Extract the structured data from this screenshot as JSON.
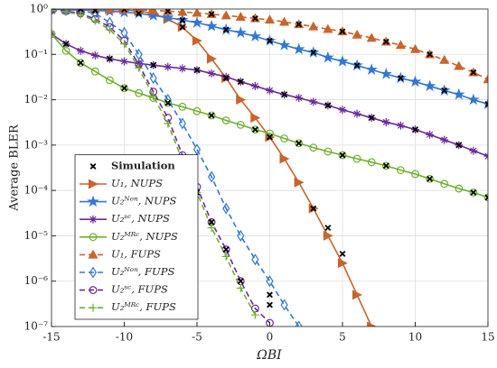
{
  "chart_data": {
    "type": "line",
    "x_label": "ΩBI",
    "y_label": "Average BLER",
    "log_y": true,
    "grid": true,
    "legend_position": "lower left",
    "xlim": [
      -15,
      15
    ],
    "xticks": [
      -15,
      -10,
      -5,
      0,
      5,
      10,
      15
    ],
    "ylim": [
      1e-07,
      1
    ],
    "yticks": [
      {
        "value": 1,
        "label": "10⁰"
      },
      {
        "value": 0.1,
        "label": "10⁻¹"
      },
      {
        "value": 0.01,
        "label": "10⁻²"
      },
      {
        "value": 0.001,
        "label": "10⁻³"
      },
      {
        "value": 0.0001,
        "label": "10⁻⁴"
      },
      {
        "value": 1e-05,
        "label": "10⁻⁵"
      },
      {
        "value": 1e-06,
        "label": "10⁻⁶"
      },
      {
        "value": 1e-07,
        "label": "10⁻⁷"
      }
    ],
    "x": [
      -15,
      -14,
      -13,
      -12,
      -11,
      -10,
      -9,
      -8,
      -7,
      -6,
      -5,
      -4,
      -3,
      -2,
      -1,
      0,
      1,
      2,
      3,
      4,
      5,
      6,
      7,
      8,
      9,
      10,
      11,
      12,
      13,
      14,
      15
    ],
    "simulation": {
      "name": "Simulation",
      "color": "#000000",
      "x": [
        -6,
        -3,
        0,
        3,
        4,
        5,
        -12,
        -9,
        -6,
        -3,
        0,
        3,
        6,
        9,
        12,
        15,
        -14,
        -11,
        -8,
        -5,
        -2,
        1,
        4,
        7,
        10,
        13,
        -13,
        -10,
        -7,
        -4,
        -1,
        2,
        5,
        8,
        11,
        14,
        15,
        -13,
        -10,
        -7,
        -4,
        -1,
        2,
        5,
        8,
        11,
        14,
        -5,
        -4,
        -3,
        -2,
        0,
        0
      ],
      "values": [
        0.4,
        0.03,
        0.0015,
        4e-05,
        1.5e-05,
        4e-06,
        0.93,
        0.8,
        0.57,
        0.35,
        0.2,
        0.11,
        0.057,
        0.03,
        0.016,
        0.008,
        0.17,
        0.08,
        0.058,
        0.045,
        0.025,
        0.013,
        0.0075,
        0.004,
        0.0022,
        0.001,
        0.065,
        0.018,
        0.0085,
        0.0045,
        0.0022,
        0.0011,
        0.0006,
        0.00035,
        0.00018,
        9e-05,
        7e-05,
        1,
        0.98,
        0.9,
        0.77,
        0.62,
        0.46,
        0.32,
        0.19,
        0.1,
        0.04,
        9e-05,
        2e-05,
        5e-06,
        1e-06,
        5e-07,
        3e-07
      ]
    },
    "series": [
      {
        "name": "U₁, NUPS",
        "color": "#c8642c",
        "marker": "triangle-right",
        "dashed": false,
        "values": [
          1,
          1,
          1,
          0.99,
          0.98,
          0.96,
          0.9,
          0.8,
          0.6,
          0.4,
          0.2,
          0.08,
          0.03,
          0.01,
          0.004,
          0.0015,
          0.0005,
          0.00015,
          4e-05,
          1e-05,
          2.5e-06,
          5e-07,
          1e-07,
          null,
          null,
          null,
          null,
          null,
          null,
          null,
          null
        ]
      },
      {
        "name": "U₂ᴺᵒⁿ, NUPS",
        "color": "#3277d2",
        "marker": "star",
        "dashed": false,
        "values": [
          0.98,
          0.97,
          0.95,
          0.93,
          0.9,
          0.85,
          0.8,
          0.72,
          0.65,
          0.57,
          0.5,
          0.42,
          0.35,
          0.3,
          0.25,
          0.2,
          0.16,
          0.13,
          0.11,
          0.085,
          0.07,
          0.057,
          0.046,
          0.037,
          0.03,
          0.025,
          0.02,
          0.016,
          0.013,
          0.01,
          0.008
        ]
      },
      {
        "name": "U₂ˢᶜ, NUPS",
        "color": "#6a2a9a",
        "marker": "asterisk",
        "dashed": false,
        "values": [
          0.28,
          0.17,
          0.12,
          0.095,
          0.08,
          0.07,
          0.063,
          0.058,
          0.053,
          0.049,
          0.045,
          0.038,
          0.032,
          0.025,
          0.02,
          0.016,
          0.013,
          0.011,
          0.009,
          0.0075,
          0.006,
          0.0049,
          0.004,
          0.0032,
          0.0027,
          0.0022,
          0.0017,
          0.0013,
          0.001,
          0.00075,
          0.00057
        ]
      },
      {
        "name": "U₂ᴹᴿᶜ, NUPS",
        "color": "#6fb02e",
        "marker": "circle",
        "dashed": false,
        "values": [
          0.28,
          0.12,
          0.065,
          0.042,
          0.027,
          0.018,
          0.014,
          0.011,
          0.0085,
          0.007,
          0.0056,
          0.0045,
          0.0035,
          0.0028,
          0.0022,
          0.0018,
          0.0014,
          0.0011,
          0.00088,
          0.00072,
          0.0006,
          0.0005,
          0.00042,
          0.00035,
          0.00028,
          0.00023,
          0.00018,
          0.00014,
          0.00011,
          9e-05,
          7e-05
        ]
      },
      {
        "name": "U₁, FUPS",
        "color": "#c8642c",
        "marker": "triangle-up",
        "dashed": true,
        "values": [
          1,
          1,
          1,
          1,
          0.99,
          0.98,
          0.96,
          0.93,
          0.9,
          0.86,
          0.82,
          0.77,
          0.72,
          0.67,
          0.62,
          0.58,
          0.52,
          0.46,
          0.41,
          0.36,
          0.32,
          0.27,
          0.23,
          0.19,
          0.16,
          0.13,
          0.1,
          0.075,
          0.055,
          0.04,
          0.028
        ]
      },
      {
        "name": "U₂ᴺᵒⁿ, FUPS",
        "color": "#3277d2",
        "marker": "diamond",
        "dashed": true,
        "values": [
          0.99,
          0.97,
          0.93,
          0.8,
          0.5,
          0.3,
          0.1,
          0.03,
          0.01,
          0.003,
          0.0008,
          0.0002,
          4e-05,
          1e-05,
          3e-06,
          1e-06,
          3e-07,
          1e-07,
          null,
          null,
          null,
          null,
          null,
          null,
          null,
          null,
          null,
          null,
          null,
          null,
          null
        ]
      },
      {
        "name": "U₂ˢᶜ, FUPS",
        "color": "#6a2a9a",
        "marker": "circle",
        "dashed": true,
        "values": [
          0.95,
          0.9,
          0.8,
          0.6,
          0.4,
          0.2,
          0.06,
          0.015,
          0.004,
          0.0006,
          0.00012,
          2e-05,
          5e-06,
          1e-06,
          2.5e-07,
          1.2e-07,
          null,
          null,
          null,
          null,
          null,
          null,
          null,
          null,
          null,
          null,
          null,
          null,
          null,
          null,
          null
        ]
      },
      {
        "name": "U₂ᴹᴿᶜ, FUPS",
        "color": "#6fb02e",
        "marker": "plus",
        "dashed": true,
        "values": [
          0.93,
          0.86,
          0.75,
          0.55,
          0.35,
          0.17,
          0.05,
          0.012,
          0.003,
          0.00045,
          9e-05,
          1.5e-05,
          3.5e-06,
          7e-07,
          1.8e-07,
          null,
          null,
          null,
          null,
          null,
          null,
          null,
          null,
          null,
          null,
          null,
          null,
          null,
          null,
          null,
          null
        ]
      }
    ]
  }
}
